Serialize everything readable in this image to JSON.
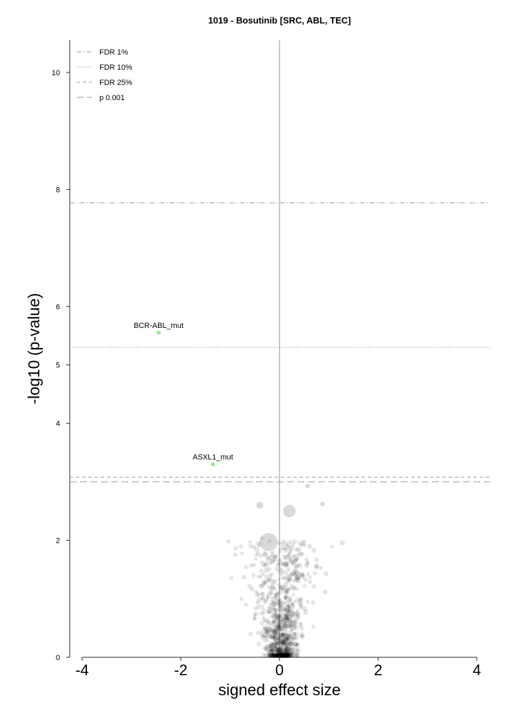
{
  "chart_data": {
    "type": "scatter",
    "title": "1019 - Bosutinib [SRC, ABL, TEC]",
    "xlabel": "signed effect size",
    "ylabel": "-log10 (p-value)",
    "xlim": [
      -4,
      4
    ],
    "ylim": [
      0,
      10.5
    ],
    "x_ticks": [
      -4,
      -2,
      0,
      2,
      4
    ],
    "x_tick_labels": [
      "-4",
      "-2",
      "0",
      "2",
      "4"
    ],
    "y_ticks": [
      0,
      2,
      4,
      5,
      6,
      8,
      10
    ],
    "y_tick_labels": [
      "0",
      "2",
      "4",
      "5",
      "6",
      "8",
      "10"
    ],
    "legend": {
      "position": "top-left",
      "entries": [
        {
          "label": "FDR 1%",
          "style": "dashdot"
        },
        {
          "label": "FDR 10%",
          "style": "dotted"
        },
        {
          "label": "FDR 25%",
          "style": "dashed"
        },
        {
          "label": "p 0.001",
          "style": "longdash"
        }
      ]
    },
    "threshold_lines": [
      {
        "name": "FDR 1%",
        "y": 7.77
      },
      {
        "name": "FDR 10%",
        "y": 5.3
      },
      {
        "name": "FDR 25%",
        "y": 3.08
      },
      {
        "name": "p 0.001",
        "y": 3.0
      }
    ],
    "highlighted_points": [
      {
        "label": "BCR-ABL_mut",
        "x": -2.45,
        "y": 5.55,
        "color": "#90ee90"
      },
      {
        "label": "ASXL1_mut",
        "x": -1.35,
        "y": 3.3,
        "color": "#90ee90"
      }
    ],
    "large_points": [
      {
        "x": -0.22,
        "y": 1.97,
        "r": 13
      },
      {
        "x": 0.2,
        "y": 2.5,
        "r": 9
      },
      {
        "x": -0.4,
        "y": 2.6,
        "r": 5
      },
      {
        "x": 0.57,
        "y": 2.93,
        "r": 3.5
      },
      {
        "x": 0.87,
        "y": 2.62,
        "r": 3.5
      },
      {
        "x": -0.35,
        "y": 2.03,
        "r": 3
      }
    ],
    "background_cloud": {
      "color": "#000000",
      "count": 900,
      "x_mean": 0.05,
      "x_spread": 0.35,
      "y_max": 2.0
    },
    "colors": {
      "highlight": "#90ee90",
      "background_point": "#000000",
      "large_point": "#bbbbbb",
      "threshold_line": "#999999",
      "zero_line": "#c8c8c8"
    }
  }
}
